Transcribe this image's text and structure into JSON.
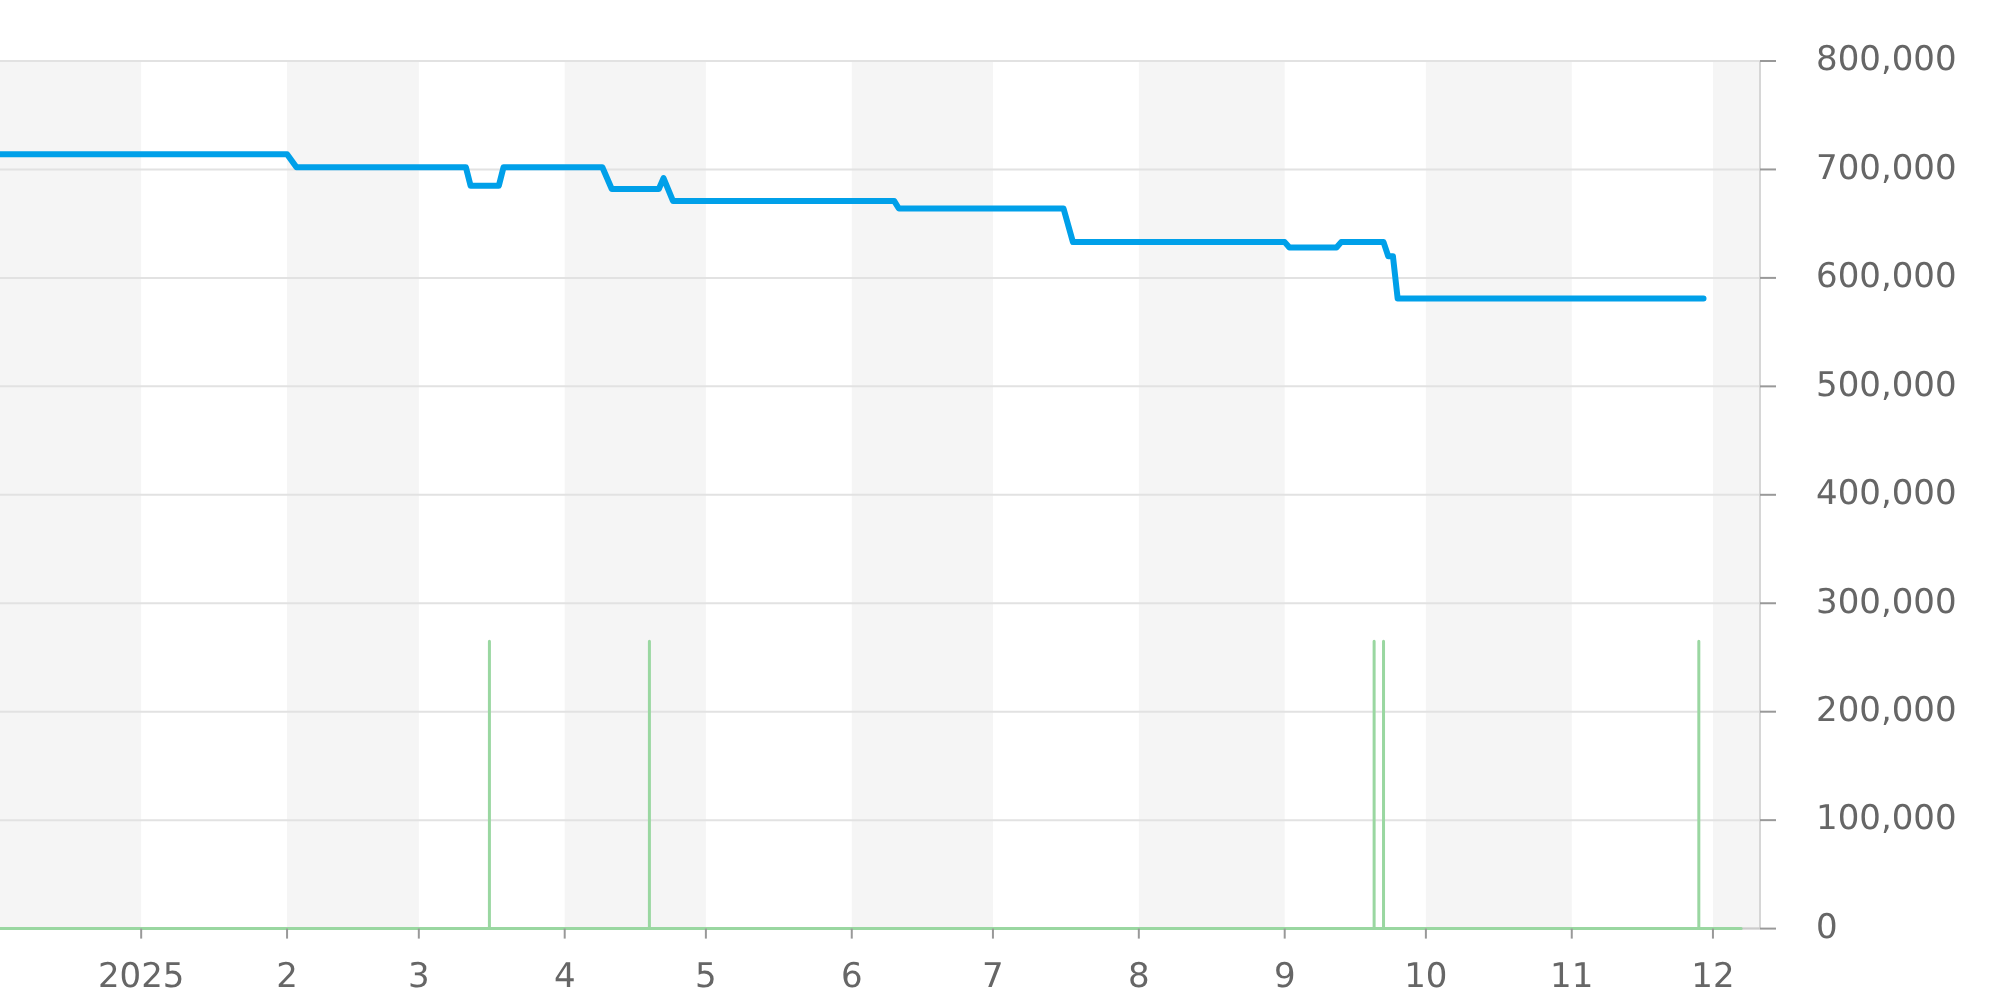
{
  "chart_data": {
    "type": "line",
    "xlim": [
      "2024-12-02",
      "2025-12-11"
    ],
    "xticks": [
      {
        "value": "2025-01-01",
        "label": "2025"
      },
      {
        "value": "2025-02-01",
        "label": "2"
      },
      {
        "value": "2025-03-01",
        "label": "3"
      },
      {
        "value": "2025-04-01",
        "label": "4"
      },
      {
        "value": "2025-05-01",
        "label": "5"
      },
      {
        "value": "2025-06-01",
        "label": "6"
      },
      {
        "value": "2025-07-01",
        "label": "7"
      },
      {
        "value": "2025-08-01",
        "label": "8"
      },
      {
        "value": "2025-09-01",
        "label": "9"
      },
      {
        "value": "2025-10-01",
        "label": "10"
      },
      {
        "value": "2025-11-01",
        "label": "11"
      },
      {
        "value": "2025-12-01",
        "label": "12"
      }
    ],
    "ylim": [
      0,
      800000
    ],
    "yticks": [
      0,
      {
        "value": 100000,
        "label": "100,000"
      },
      {
        "value": 200000,
        "label": "200,000"
      },
      {
        "value": 300000,
        "label": "300,000"
      },
      {
        "value": 400000,
        "label": "400,000"
      },
      {
        "value": 500000,
        "label": "500,000"
      },
      {
        "value": 600000,
        "label": "600,000"
      },
      {
        "value": 700000,
        "label": "700,000"
      },
      {
        "value": 800000,
        "label": "800,000"
      }
    ],
    "grid": "y",
    "bands": [
      {
        "axis": "x",
        "from": "2024-12-02",
        "to": "2025-01-01",
        "color": "#f5f5f5"
      },
      {
        "axis": "x",
        "from": "2025-02-01",
        "to": "2025-03-01",
        "color": "#f5f5f5"
      },
      {
        "axis": "x",
        "from": "2025-04-01",
        "to": "2025-05-01",
        "color": "#f5f5f5"
      },
      {
        "axis": "x",
        "from": "2025-06-01",
        "to": "2025-07-01",
        "color": "#f5f5f5"
      },
      {
        "axis": "x",
        "from": "2025-08-01",
        "to": "2025-09-01",
        "color": "#f5f5f5"
      },
      {
        "axis": "x",
        "from": "2025-10-01",
        "to": "2025-11-01",
        "color": "#f5f5f5"
      },
      {
        "axis": "x",
        "from": "2025-12-01",
        "to": "2025-12-11",
        "color": "#f5f5f5"
      }
    ],
    "series": [
      {
        "color": "#9ad7a1",
        "x": [
          "2024-12-02",
          "2025-03-16",
          "2025-03-16",
          "2025-03-16",
          "2025-04-19",
          "2025-04-19",
          "2025-04-19",
          "2025-09-20",
          "2025-09-20",
          "2025-09-20",
          "2025-09-22",
          "2025-09-22",
          "2025-09-22",
          "2025-11-28",
          "2025-11-28",
          "2025-11-28",
          "2025-12-07"
        ],
        "values": [
          0,
          0,
          265000,
          0,
          0,
          265000,
          0,
          0,
          265000,
          0,
          0,
          265000,
          0,
          0,
          265000,
          0,
          0
        ]
      },
      {
        "color": "#00a0e9",
        "x": [
          "2024-12-02",
          "2025-02-01",
          "2025-02-03",
          "2025-03-11",
          "2025-03-12",
          "2025-03-18",
          "2025-03-19",
          "2025-04-09",
          "2025-04-11",
          "2025-04-21",
          "2025-04-22",
          "2025-04-24",
          "2025-06-10",
          "2025-06-11",
          "2025-07-16",
          "2025-07-18",
          "2025-09-01",
          "2025-09-02",
          "2025-09-12",
          "2025-09-13",
          "2025-09-22",
          "2025-09-23",
          "2025-09-24",
          "2025-09-25",
          "2025-11-29"
        ],
        "values": [
          714000,
          714000,
          702000,
          702000,
          685000,
          685000,
          702000,
          702000,
          682000,
          682000,
          692000,
          671000,
          671000,
          664000,
          664000,
          633000,
          633000,
          628000,
          628000,
          633000,
          633000,
          620000,
          620000,
          581000,
          581000
        ]
      }
    ]
  }
}
